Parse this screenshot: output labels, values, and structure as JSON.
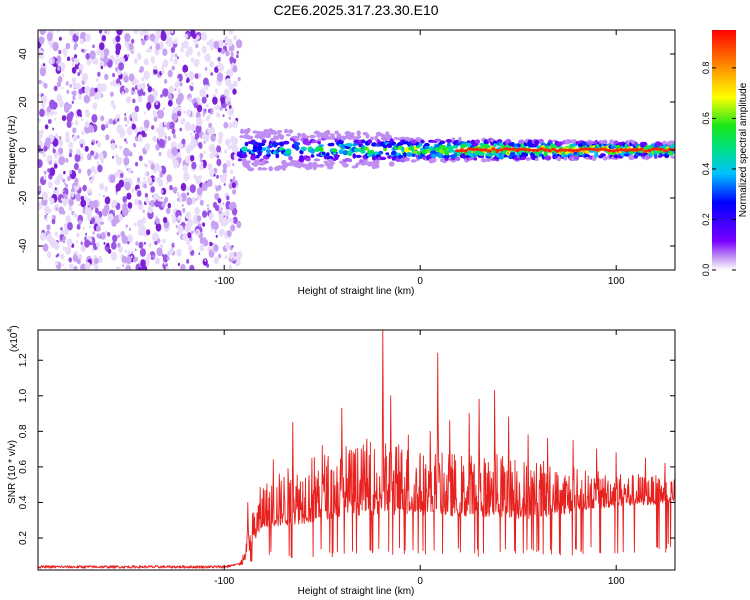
{
  "title": "C2E6.2025.317.23.30.E10",
  "colors": {
    "snr_line": "#e8201e",
    "frame": "#000000",
    "speckle_purple": "#7b1fd6"
  },
  "chart_data": [
    {
      "type": "heatmap",
      "title": "C2E6.2025.317.23.30.E10",
      "xlabel": "Height of straight line (km)",
      "ylabel": "Frequency (Hz)",
      "xlim": [
        -195,
        130
      ],
      "ylim": [
        -50,
        50
      ],
      "xticks": [
        -100,
        0,
        100
      ],
      "xtick_labels": [
        "-100",
        "0",
        "100"
      ],
      "yticks": [
        -40,
        -20,
        0,
        20,
        40
      ],
      "ytick_labels": [
        "-40",
        "-20",
        "0",
        "20",
        "40"
      ],
      "noise_region_x": [
        -195,
        -92
      ],
      "signal_band": {
        "x_start": -92,
        "x_end": 130,
        "center_freq_hz": 0,
        "half_width_hz_near": 6,
        "half_width_hz_far": 3,
        "peak_amplitude_near": 0.5,
        "peak_amplitude_far": 0.95
      },
      "colorbar": {
        "label": "Normalized spectral amplitude",
        "range": [
          0.0,
          0.95
        ],
        "ticks": [
          0.0,
          0.2,
          0.4,
          0.6,
          0.8
        ],
        "tick_labels": [
          "0.0",
          "0.2",
          "0.4",
          "0.6",
          "0.8"
        ],
        "colormap": [
          "#ffffff",
          "#c49af2",
          "#7a00ff",
          "#0000ff",
          "#00bfff",
          "#00e08a",
          "#19e619",
          "#ffff00",
          "#ff8c00",
          "#ff0000"
        ]
      }
    },
    {
      "type": "line",
      "xlabel": "Height of straight line (km)",
      "ylabel": "SNR (10 * v/v)",
      "scale_label": "(x10",
      "scale_exponent": "4",
      "xlim": [
        -195,
        130
      ],
      "ylim": [
        0.02,
        1.37
      ],
      "xticks": [
        -100,
        0,
        100
      ],
      "xtick_labels": [
        "-100",
        "0",
        "100"
      ],
      "yticks": [
        0.2,
        0.4,
        0.6,
        0.8,
        1.0,
        1.2
      ],
      "ytick_labels": [
        "0.2",
        "0.4",
        "0.6",
        "0.8",
        "1.0",
        "1.2"
      ],
      "envelope": {
        "x": [
          -195,
          -100,
          -90,
          -85,
          -80,
          -70,
          -60,
          -50,
          -40,
          -30,
          -20,
          -10,
          0,
          10,
          20,
          30,
          40,
          50,
          60,
          70,
          80,
          90,
          100,
          110,
          120,
          130
        ],
        "baseline": [
          0.03,
          0.03,
          0.05,
          0.18,
          0.25,
          0.27,
          0.28,
          0.3,
          0.32,
          0.33,
          0.33,
          0.33,
          0.33,
          0.33,
          0.32,
          0.32,
          0.32,
          0.31,
          0.31,
          0.33,
          0.34,
          0.36,
          0.38,
          0.38,
          0.39,
          0.4
        ],
        "upper": [
          0.04,
          0.04,
          0.12,
          0.4,
          0.55,
          0.6,
          0.68,
          0.72,
          0.75,
          0.78,
          0.8,
          0.78,
          0.72,
          0.72,
          0.7,
          0.7,
          0.72,
          0.7,
          0.66,
          0.63,
          0.62,
          0.6,
          0.6,
          0.58,
          0.56,
          0.55
        ]
      },
      "peaks": [
        {
          "x": -88,
          "y": 0.4
        },
        {
          "x": -75,
          "y": 0.64
        },
        {
          "x": -65,
          "y": 0.85
        },
        {
          "x": -50,
          "y": 0.72
        },
        {
          "x": -40,
          "y": 0.93
        },
        {
          "x": -30,
          "y": 0.7
        },
        {
          "x": -19,
          "y": 1.37
        },
        {
          "x": -15,
          "y": 1.0
        },
        {
          "x": -6,
          "y": 0.78
        },
        {
          "x": 5,
          "y": 0.8
        },
        {
          "x": 9,
          "y": 1.24
        },
        {
          "x": 15,
          "y": 0.86
        },
        {
          "x": 25,
          "y": 0.9
        },
        {
          "x": 30,
          "y": 0.98
        },
        {
          "x": 38,
          "y": 1.03
        },
        {
          "x": 45,
          "y": 0.88
        },
        {
          "x": 55,
          "y": 0.78
        },
        {
          "x": 65,
          "y": 0.76
        },
        {
          "x": 78,
          "y": 0.75
        },
        {
          "x": 90,
          "y": 0.7
        },
        {
          "x": 100,
          "y": 0.68
        },
        {
          "x": 115,
          "y": 0.65
        },
        {
          "x": 125,
          "y": 0.62
        }
      ]
    }
  ]
}
